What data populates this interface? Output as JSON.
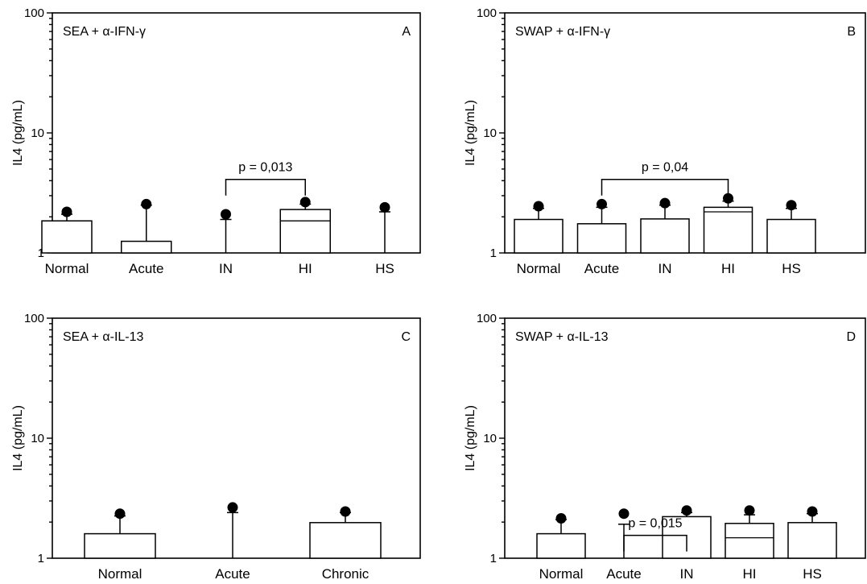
{
  "chart_data": [
    {
      "type": "bar",
      "letter": "A",
      "title": "SEA + α-IFN-γ",
      "ylabel": "IL4 (pg/mL)",
      "yscale": "log",
      "ylim": [
        1,
        100
      ],
      "yticks": [
        "1",
        "10",
        "100"
      ],
      "categories": [
        "Normal",
        "Acute",
        "IN",
        "HI",
        "HS"
      ],
      "values": [
        1.85,
        1.25,
        0,
        2.3,
        0
      ],
      "medians": [
        null,
        null,
        null,
        1.85,
        null
      ],
      "error_upper": [
        2.1,
        2.5,
        1.9,
        2.55,
        2.2
      ],
      "points": [
        2.2,
        2.55,
        2.1,
        2.65,
        2.4
      ],
      "significance": [
        {
          "from": "IN",
          "to": "HI",
          "label": "p = 0,013",
          "level": 4.1
        }
      ]
    },
    {
      "type": "bar",
      "letter": "B",
      "title": "SWAP + α-IFN-γ",
      "ylabel": "IL4 (pg/mL)",
      "yscale": "log",
      "ylim": [
        1,
        100
      ],
      "yticks": [
        "1",
        "10",
        "100"
      ],
      "categories": [
        "Normal",
        "Acute",
        "IN",
        "HI",
        "HS"
      ],
      "values": [
        1.9,
        1.75,
        1.92,
        2.4,
        1.9
      ],
      "medians": [
        null,
        null,
        null,
        2.2,
        null
      ],
      "error_upper": [
        2.35,
        2.4,
        2.5,
        2.7,
        2.35
      ],
      "points": [
        2.45,
        2.55,
        2.6,
        2.85,
        2.5
      ],
      "significance": [
        {
          "from": "Acute",
          "to": "HI",
          "label": "p = 0,04",
          "level": 4.1
        }
      ]
    },
    {
      "type": "bar",
      "letter": "C",
      "title": "SEA + α-IL-13",
      "ylabel": "IL4 (pg/mL)",
      "yscale": "log",
      "ylim": [
        1,
        100
      ],
      "yticks": [
        "1",
        "10",
        "100"
      ],
      "categories": [
        "Normal",
        "Acute",
        "Chronic"
      ],
      "values": [
        1.6,
        0,
        1.98
      ],
      "medians": [
        null,
        null,
        null
      ],
      "error_upper": [
        2.25,
        2.4,
        2.4
      ],
      "points": [
        2.35,
        2.65,
        2.45
      ],
      "significance": []
    },
    {
      "type": "bar",
      "letter": "D",
      "title": "SWAP + α-IL-13",
      "ylabel": "IL4 (pg/mL)",
      "yscale": "log",
      "ylim": [
        1,
        100
      ],
      "yticks": [
        "1",
        "10",
        "100"
      ],
      "categories": [
        "Normal",
        "Acute",
        "IN",
        "HI",
        "HS"
      ],
      "values": [
        1.6,
        0,
        2.22,
        1.95,
        1.98
      ],
      "medians": [
        null,
        null,
        null,
        1.48,
        null
      ],
      "error_upper": [
        2.1,
        1.92,
        2.4,
        2.3,
        2.35
      ],
      "points": [
        2.15,
        2.35,
        2.5,
        2.5,
        2.45
      ],
      "significance": [
        {
          "from": "Acute",
          "to": "IN",
          "label": "p = 0,015",
          "level": 1.55
        }
      ]
    }
  ]
}
